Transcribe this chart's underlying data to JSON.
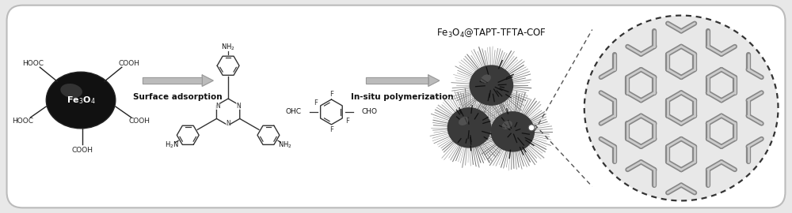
{
  "background_color": "#e8e8e8",
  "border_color": "#bbbbbb",
  "text_color": "#111111",
  "arrow_color": "#999999",
  "label_surface": "Surface adsorption",
  "label_insitu": "In-situ polymerization",
  "label_product": "Fe$_3$O$_4$@TAPT-TFTA-COF",
  "fe3o4_label": "Fe$_3$O$_4$",
  "figsize": [
    10.0,
    2.7
  ],
  "dpi": 100
}
